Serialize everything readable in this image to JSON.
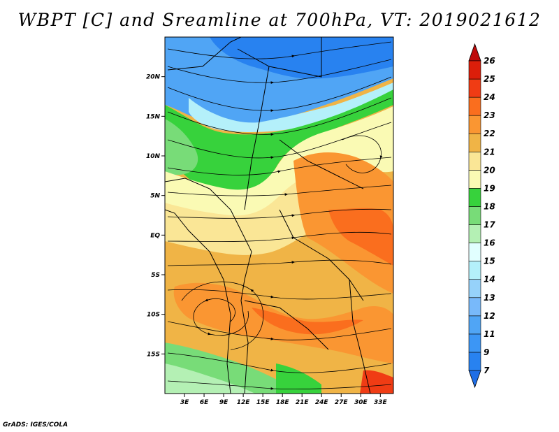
{
  "title": "WBPT [C] and Sreamline at 700hPa, VT: 2019021612",
  "credit": "GrADS: IGES/COLA",
  "map": {
    "lat_ticks": [
      "20N",
      "15N",
      "10N",
      "5N",
      "EQ",
      "5S",
      "10S",
      "15S"
    ],
    "lat_values": [
      20,
      15,
      10,
      5,
      0,
      -5,
      -10,
      -15
    ],
    "lon_ticks": [
      "3E",
      "6E",
      "9E",
      "12E",
      "15E",
      "18E",
      "21E",
      "24E",
      "27E",
      "30E",
      "33E"
    ],
    "lon_values": [
      3,
      6,
      9,
      12,
      15,
      18,
      21,
      24,
      27,
      30,
      33
    ],
    "lat_range": [
      -20,
      25
    ],
    "lon_range": [
      0,
      35
    ],
    "field": "wet bulb potential temperature",
    "overlay": "streamlines"
  },
  "colorbar": {
    "levels": [
      "7",
      "9",
      "11",
      "12",
      "13",
      "14",
      "15",
      "16",
      "17",
      "18",
      "19",
      "20",
      "21",
      "22",
      "23",
      "24",
      "25",
      "26"
    ],
    "colors": [
      "#1e6ee6",
      "#2882f0",
      "#3c96f5",
      "#50a5f5",
      "#78b9fa",
      "#96d2fa",
      "#b4f0fa",
      "#e1ffff",
      "#b4f0b4",
      "#78dc78",
      "#37d23c",
      "#fafab4",
      "#fae696",
      "#f0b446",
      "#fa9632",
      "#fa6e1e",
      "#f03c14",
      "#dc1e0a",
      "#be0a0a"
    ]
  }
}
